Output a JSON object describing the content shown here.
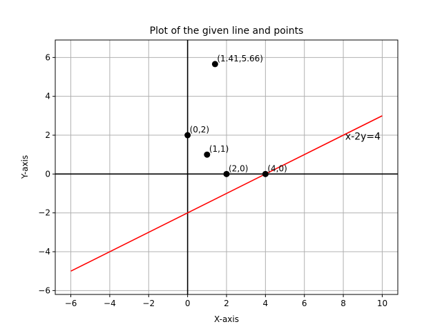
{
  "chart_data": {
    "type": "line",
    "title": "Plot of the given line and points",
    "xlabel": "X-axis",
    "ylabel": "Y-axis",
    "xlim": [
      -6.8,
      10.8
    ],
    "ylim": [
      -6.2,
      6.9
    ],
    "xticks": [
      -6,
      -4,
      -2,
      0,
      2,
      4,
      6,
      8,
      10
    ],
    "yticks": [
      -6,
      -4,
      -2,
      0,
      2,
      4,
      6
    ],
    "xtick_labels": [
      "−6",
      "−4",
      "−2",
      "0",
      "2",
      "4",
      "6",
      "8",
      "10"
    ],
    "ytick_labels": [
      "−6",
      "−4",
      "−2",
      "0",
      "2",
      "4",
      "6"
    ],
    "grid": true,
    "line": {
      "label": "x-2y=4",
      "color": "#ff0000",
      "x": [
        -6,
        10
      ],
      "y": [
        -5,
        3
      ],
      "label_position": [
        8.1,
        1.95
      ]
    },
    "points": [
      {
        "x": 1.41,
        "y": 5.66,
        "label": "(1.41,5.66)"
      },
      {
        "x": 0,
        "y": 2,
        "label": "(0,2)"
      },
      {
        "x": 1,
        "y": 1,
        "label": "(1,1)"
      },
      {
        "x": 2,
        "y": 0,
        "label": "(2,0)"
      },
      {
        "x": 4,
        "y": 0,
        "label": "(4,0)"
      }
    ],
    "colors": {
      "points": "#000000",
      "axes_lines": "#000000",
      "grid": "#b0b0b0"
    }
  }
}
